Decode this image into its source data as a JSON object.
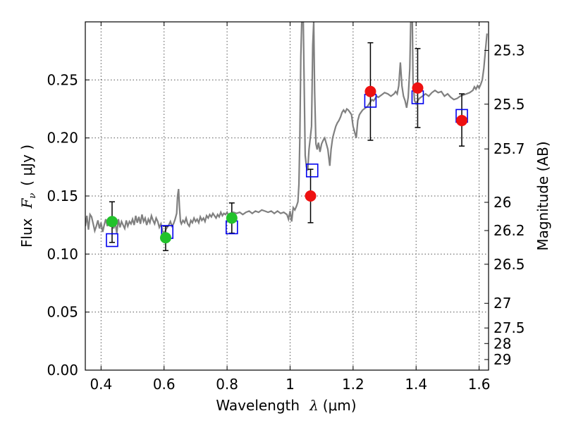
{
  "chart_data": {
    "type": "scatter",
    "xlabel_text": "Wavelength",
    "xlabel_symbol": "λ",
    "xlabel_unit": "(μm)",
    "ylabel_text": "Flux",
    "ylabel_symbol": "F",
    "ylabel_sub": "ν",
    "ylabel_unit": "( μJy )",
    "y2label": "Magnitude (AB)",
    "xlim": [
      0.35,
      1.63
    ],
    "ylim": [
      0.0,
      0.3
    ],
    "grid": true,
    "x_ticks": [
      {
        "value": 0.4,
        "label": "0.4"
      },
      {
        "value": 0.6,
        "label": "0.6"
      },
      {
        "value": 0.8,
        "label": "0.8"
      },
      {
        "value": 1.0,
        "label": "1"
      },
      {
        "value": 1.2,
        "label": "1.2"
      },
      {
        "value": 1.4,
        "label": "1.4"
      },
      {
        "value": 1.6,
        "label": "1.6"
      }
    ],
    "y_ticks": [
      {
        "value": 0.0,
        "label": "0.00"
      },
      {
        "value": 0.05,
        "label": "0.05"
      },
      {
        "value": 0.1,
        "label": "0.10"
      },
      {
        "value": 0.15,
        "label": "0.15"
      },
      {
        "value": 0.2,
        "label": "0.20"
      },
      {
        "value": 0.25,
        "label": "0.25"
      }
    ],
    "mag_ticks": [
      {
        "label": "25.3"
      },
      {
        "label": "25.5"
      },
      {
        "label": "25.7"
      },
      {
        "label": "26"
      },
      {
        "label": "26.2"
      },
      {
        "label": "26.5"
      },
      {
        "label": "27"
      },
      {
        "label": "27.5"
      },
      {
        "label": "28"
      },
      {
        "label": "29"
      }
    ],
    "colors": {
      "spectrum": "#808080",
      "green": "#22c22b",
      "red": "#ee1111",
      "model": "#0000ee",
      "error": "#000000",
      "grid": "#555555"
    },
    "photometry": [
      {
        "x": 0.435,
        "y": 0.128,
        "err_lo": 0.018,
        "err_hi": 0.017,
        "color": "green"
      },
      {
        "x": 0.605,
        "y": 0.114,
        "err_lo": 0.011,
        "err_hi": 0.01,
        "color": "green"
      },
      {
        "x": 0.815,
        "y": 0.131,
        "err_lo": 0.013,
        "err_hi": 0.013,
        "color": "green"
      },
      {
        "x": 1.065,
        "y": 0.15,
        "err_lo": 0.023,
        "err_hi": 0.023,
        "color": "red"
      },
      {
        "x": 1.255,
        "y": 0.24,
        "err_lo": 0.042,
        "err_hi": 0.042,
        "color": "red"
      },
      {
        "x": 1.405,
        "y": 0.243,
        "err_lo": 0.034,
        "err_hi": 0.034,
        "color": "red"
      },
      {
        "x": 1.545,
        "y": 0.215,
        "err_lo": 0.022,
        "err_hi": 0.023,
        "color": "red"
      }
    ],
    "model_points": [
      {
        "x": 0.435,
        "y": 0.112
      },
      {
        "x": 0.61,
        "y": 0.119
      },
      {
        "x": 0.815,
        "y": 0.123
      },
      {
        "x": 1.07,
        "y": 0.172
      },
      {
        "x": 1.255,
        "y": 0.232
      },
      {
        "x": 1.405,
        "y": 0.235
      },
      {
        "x": 1.545,
        "y": 0.219
      }
    ],
    "spectrum": [
      [
        0.35,
        0.124
      ],
      [
        0.355,
        0.133
      ],
      [
        0.36,
        0.121
      ],
      [
        0.365,
        0.134
      ],
      [
        0.37,
        0.132
      ],
      [
        0.375,
        0.126
      ],
      [
        0.38,
        0.12
      ],
      [
        0.385,
        0.124
      ],
      [
        0.39,
        0.129
      ],
      [
        0.395,
        0.122
      ],
      [
        0.4,
        0.127
      ],
      [
        0.405,
        0.119
      ],
      [
        0.41,
        0.125
      ],
      [
        0.415,
        0.13
      ],
      [
        0.42,
        0.124
      ],
      [
        0.425,
        0.129
      ],
      [
        0.43,
        0.125
      ],
      [
        0.435,
        0.128
      ],
      [
        0.44,
        0.122
      ],
      [
        0.445,
        0.127
      ],
      [
        0.45,
        0.118
      ],
      [
        0.455,
        0.13
      ],
      [
        0.46,
        0.123
      ],
      [
        0.465,
        0.128
      ],
      [
        0.47,
        0.125
      ],
      [
        0.475,
        0.122
      ],
      [
        0.48,
        0.129
      ],
      [
        0.485,
        0.124
      ],
      [
        0.49,
        0.128
      ],
      [
        0.495,
        0.126
      ],
      [
        0.5,
        0.13
      ],
      [
        0.505,
        0.125
      ],
      [
        0.51,
        0.133
      ],
      [
        0.515,
        0.127
      ],
      [
        0.52,
        0.132
      ],
      [
        0.525,
        0.126
      ],
      [
        0.53,
        0.134
      ],
      [
        0.535,
        0.128
      ],
      [
        0.54,
        0.131
      ],
      [
        0.545,
        0.125
      ],
      [
        0.55,
        0.13
      ],
      [
        0.555,
        0.127
      ],
      [
        0.56,
        0.133
      ],
      [
        0.565,
        0.129
      ],
      [
        0.57,
        0.126
      ],
      [
        0.575,
        0.131
      ],
      [
        0.58,
        0.128
      ],
      [
        0.585,
        0.123
      ],
      [
        0.59,
        0.126
      ],
      [
        0.595,
        0.12
      ],
      [
        0.6,
        0.117
      ],
      [
        0.605,
        0.121
      ],
      [
        0.61,
        0.123
      ],
      [
        0.615,
        0.125
      ],
      [
        0.62,
        0.128
      ],
      [
        0.625,
        0.124
      ],
      [
        0.63,
        0.126
      ],
      [
        0.635,
        0.13
      ],
      [
        0.64,
        0.135
      ],
      [
        0.643,
        0.15
      ],
      [
        0.646,
        0.156
      ],
      [
        0.649,
        0.14
      ],
      [
        0.652,
        0.128
      ],
      [
        0.655,
        0.126
      ],
      [
        0.66,
        0.129
      ],
      [
        0.665,
        0.127
      ],
      [
        0.67,
        0.131
      ],
      [
        0.675,
        0.126
      ],
      [
        0.68,
        0.124
      ],
      [
        0.685,
        0.129
      ],
      [
        0.69,
        0.127
      ],
      [
        0.695,
        0.131
      ],
      [
        0.7,
        0.128
      ],
      [
        0.705,
        0.13
      ],
      [
        0.71,
        0.127
      ],
      [
        0.715,
        0.132
      ],
      [
        0.72,
        0.129
      ],
      [
        0.725,
        0.131
      ],
      [
        0.73,
        0.128
      ],
      [
        0.735,
        0.133
      ],
      [
        0.74,
        0.131
      ],
      [
        0.745,
        0.134
      ],
      [
        0.75,
        0.132
      ],
      [
        0.755,
        0.135
      ],
      [
        0.76,
        0.133
      ],
      [
        0.765,
        0.131
      ],
      [
        0.77,
        0.134
      ],
      [
        0.775,
        0.132
      ],
      [
        0.78,
        0.136
      ],
      [
        0.785,
        0.133
      ],
      [
        0.79,
        0.135
      ],
      [
        0.795,
        0.134
      ],
      [
        0.8,
        0.136
      ],
      [
        0.805,
        0.133
      ],
      [
        0.81,
        0.135
      ],
      [
        0.815,
        0.134
      ],
      [
        0.82,
        0.136
      ],
      [
        0.83,
        0.135
      ],
      [
        0.84,
        0.136
      ],
      [
        0.85,
        0.134
      ],
      [
        0.86,
        0.136
      ],
      [
        0.87,
        0.137
      ],
      [
        0.88,
        0.135
      ],
      [
        0.89,
        0.137
      ],
      [
        0.9,
        0.136
      ],
      [
        0.91,
        0.138
      ],
      [
        0.92,
        0.137
      ],
      [
        0.93,
        0.136
      ],
      [
        0.94,
        0.137
      ],
      [
        0.95,
        0.135
      ],
      [
        0.96,
        0.137
      ],
      [
        0.97,
        0.135
      ],
      [
        0.98,
        0.136
      ],
      [
        0.99,
        0.134
      ],
      [
        0.995,
        0.13
      ],
      [
        1.0,
        0.137
      ],
      [
        1.005,
        0.128
      ],
      [
        1.01,
        0.14
      ],
      [
        1.015,
        0.138
      ],
      [
        1.02,
        0.141
      ],
      [
        1.025,
        0.145
      ],
      [
        1.028,
        0.16
      ],
      [
        1.031,
        0.2
      ],
      [
        1.034,
        0.27
      ],
      [
        1.037,
        0.3
      ],
      [
        1.042,
        0.3
      ],
      [
        1.045,
        0.24
      ],
      [
        1.048,
        0.185
      ],
      [
        1.052,
        0.175
      ],
      [
        1.056,
        0.172
      ],
      [
        1.06,
        0.19
      ],
      [
        1.064,
        0.2
      ],
      [
        1.068,
        0.21
      ],
      [
        1.072,
        0.28
      ],
      [
        1.075,
        0.3
      ],
      [
        1.078,
        0.24
      ],
      [
        1.082,
        0.195
      ],
      [
        1.086,
        0.19
      ],
      [
        1.09,
        0.196
      ],
      [
        1.095,
        0.188
      ],
      [
        1.1,
        0.195
      ],
      [
        1.105,
        0.198
      ],
      [
        1.11,
        0.2
      ],
      [
        1.115,
        0.195
      ],
      [
        1.12,
        0.19
      ],
      [
        1.123,
        0.183
      ],
      [
        1.126,
        0.176
      ],
      [
        1.13,
        0.19
      ],
      [
        1.135,
        0.2
      ],
      [
        1.14,
        0.205
      ],
      [
        1.145,
        0.21
      ],
      [
        1.15,
        0.213
      ],
      [
        1.155,
        0.215
      ],
      [
        1.16,
        0.218
      ],
      [
        1.165,
        0.222
      ],
      [
        1.17,
        0.224
      ],
      [
        1.175,
        0.222
      ],
      [
        1.18,
        0.225
      ],
      [
        1.185,
        0.224
      ],
      [
        1.19,
        0.222
      ],
      [
        1.195,
        0.22
      ],
      [
        1.2,
        0.21
      ],
      [
        1.205,
        0.205
      ],
      [
        1.21,
        0.2
      ],
      [
        1.215,
        0.215
      ],
      [
        1.22,
        0.22
      ],
      [
        1.225,
        0.222
      ],
      [
        1.23,
        0.224
      ],
      [
        1.235,
        0.225
      ],
      [
        1.24,
        0.226
      ],
      [
        1.245,
        0.227
      ],
      [
        1.25,
        0.229
      ],
      [
        1.255,
        0.231
      ],
      [
        1.26,
        0.233
      ],
      [
        1.265,
        0.232
      ],
      [
        1.27,
        0.234
      ],
      [
        1.275,
        0.236
      ],
      [
        1.28,
        0.235
      ],
      [
        1.29,
        0.237
      ],
      [
        1.3,
        0.239
      ],
      [
        1.31,
        0.238
      ],
      [
        1.32,
        0.236
      ],
      [
        1.33,
        0.238
      ],
      [
        1.335,
        0.24
      ],
      [
        1.34,
        0.238
      ],
      [
        1.345,
        0.245
      ],
      [
        1.35,
        0.265
      ],
      [
        1.355,
        0.245
      ],
      [
        1.36,
        0.236
      ],
      [
        1.365,
        0.232
      ],
      [
        1.37,
        0.226
      ],
      [
        1.375,
        0.235
      ],
      [
        1.38,
        0.26
      ],
      [
        1.383,
        0.3
      ],
      [
        1.388,
        0.3
      ],
      [
        1.39,
        0.25
      ],
      [
        1.395,
        0.232
      ],
      [
        1.4,
        0.23
      ],
      [
        1.405,
        0.232
      ],
      [
        1.41,
        0.234
      ],
      [
        1.42,
        0.236
      ],
      [
        1.43,
        0.238
      ],
      [
        1.44,
        0.236
      ],
      [
        1.45,
        0.239
      ],
      [
        1.46,
        0.241
      ],
      [
        1.47,
        0.239
      ],
      [
        1.48,
        0.24
      ],
      [
        1.49,
        0.236
      ],
      [
        1.5,
        0.238
      ],
      [
        1.51,
        0.235
      ],
      [
        1.52,
        0.233
      ],
      [
        1.53,
        0.234
      ],
      [
        1.54,
        0.236
      ],
      [
        1.55,
        0.237
      ],
      [
        1.56,
        0.238
      ],
      [
        1.57,
        0.239
      ],
      [
        1.58,
        0.241
      ],
      [
        1.585,
        0.244
      ],
      [
        1.59,
        0.242
      ],
      [
        1.595,
        0.245
      ],
      [
        1.6,
        0.243
      ],
      [
        1.605,
        0.246
      ],
      [
        1.61,
        0.25
      ],
      [
        1.615,
        0.26
      ],
      [
        1.62,
        0.275
      ],
      [
        1.625,
        0.29
      ]
    ]
  }
}
